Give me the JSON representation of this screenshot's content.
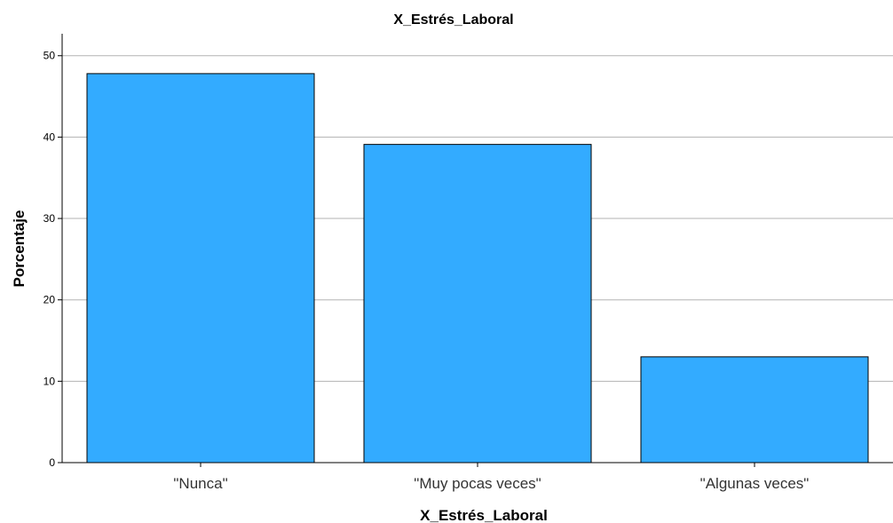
{
  "chart_data": {
    "type": "bar",
    "title": "X_Estrés_Laboral",
    "xlabel": "X_Estrés_Laboral",
    "ylabel": "Porcentaje",
    "categories": [
      "\"Nunca\"",
      "\"Muy pocas veces\"",
      "\"Algunas veces\""
    ],
    "values": [
      47.8,
      39.1,
      13.0
    ],
    "ylim": [
      0,
      52.7
    ],
    "yticks": [
      0,
      10,
      20,
      30,
      40,
      50
    ],
    "grid": true,
    "bar_color": "#33abff",
    "bar_edge_color": "#000000",
    "grid_color": "#b3b3b3"
  }
}
